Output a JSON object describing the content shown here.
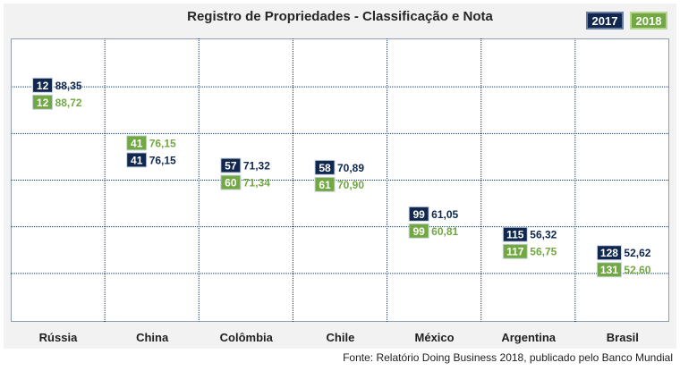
{
  "title": "Registro de Propriedades - Classificação e Nota",
  "legend": {
    "y2017": "2017",
    "y2018": "2018"
  },
  "source": "Fonte: Relatório Doing Business 2018, publicado pelo Banco Mundial",
  "colors": {
    "y2017": "#10284f",
    "y2018": "#72a841",
    "grid": "#1f3b66"
  },
  "chart_data": {
    "type": "scatter",
    "categories": [
      "Rússia",
      "China",
      "Colômbia",
      "Chile",
      "México",
      "Argentina",
      "Brasil"
    ],
    "ylim": [
      40,
      100
    ],
    "grid": true,
    "legend_position": "top-right",
    "series": [
      {
        "name": "2017",
        "rank": [
          12,
          41,
          57,
          58,
          99,
          115,
          128
        ],
        "score": [
          88.35,
          76.15,
          71.32,
          70.89,
          61.05,
          56.32,
          52.62
        ],
        "rank_labels": [
          "12",
          "41",
          "57",
          "58",
          "99",
          "115",
          "128"
        ],
        "score_labels": [
          "88,35",
          "76,15",
          "71,32",
          "70,89",
          "61,05",
          "56,32",
          "52,62"
        ]
      },
      {
        "name": "2018",
        "rank": [
          12,
          41,
          60,
          61,
          99,
          117,
          131
        ],
        "score": [
          88.72,
          76.15,
          71.34,
          70.9,
          60.81,
          56.75,
          52.6
        ],
        "rank_labels": [
          "12",
          "41",
          "60",
          "61",
          "99",
          "117",
          "131"
        ],
        "score_labels": [
          "88,72",
          "76,15",
          "71,34",
          "70,90",
          "60,81",
          "56,75",
          "52,60"
        ]
      }
    ]
  }
}
